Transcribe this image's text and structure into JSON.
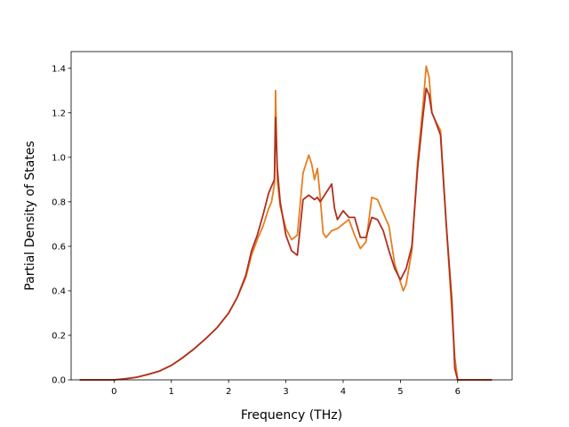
{
  "chart_data": {
    "type": "line",
    "xlabel": "Frequency (THz)",
    "ylabel": "Partial Density of States",
    "xlim": [
      -0.75,
      6.95
    ],
    "ylim": [
      0.0,
      1.475
    ],
    "xticks": [
      0,
      1,
      2,
      3,
      4,
      5,
      6
    ],
    "yticks": [
      0.0,
      0.2,
      0.4,
      0.6,
      0.8,
      1.0,
      1.2,
      1.4
    ],
    "grid": false,
    "legend": "none",
    "series": [
      {
        "color": "#e67e22",
        "points": [
          [
            -0.6,
            0
          ],
          [
            0,
            0
          ],
          [
            0.2,
            0.005
          ],
          [
            0.4,
            0.012
          ],
          [
            0.6,
            0.025
          ],
          [
            0.8,
            0.04
          ],
          [
            1.0,
            0.065
          ],
          [
            1.2,
            0.1
          ],
          [
            1.4,
            0.14
          ],
          [
            1.6,
            0.185
          ],
          [
            1.8,
            0.235
          ],
          [
            2.0,
            0.3
          ],
          [
            2.15,
            0.37
          ],
          [
            2.3,
            0.46
          ],
          [
            2.4,
            0.56
          ],
          [
            2.5,
            0.63
          ],
          [
            2.6,
            0.69
          ],
          [
            2.7,
            0.77
          ],
          [
            2.75,
            0.8
          ],
          [
            2.8,
            0.88
          ],
          [
            2.82,
            1.3
          ],
          [
            2.85,
            0.9
          ],
          [
            2.9,
            0.78
          ],
          [
            3.0,
            0.68
          ],
          [
            3.1,
            0.63
          ],
          [
            3.2,
            0.65
          ],
          [
            3.3,
            0.93
          ],
          [
            3.4,
            1.01
          ],
          [
            3.45,
            0.97
          ],
          [
            3.5,
            0.9
          ],
          [
            3.55,
            0.95
          ],
          [
            3.6,
            0.82
          ],
          [
            3.65,
            0.66
          ],
          [
            3.7,
            0.64
          ],
          [
            3.8,
            0.67
          ],
          [
            3.9,
            0.68
          ],
          [
            4.0,
            0.7
          ],
          [
            4.1,
            0.72
          ],
          [
            4.2,
            0.65
          ],
          [
            4.3,
            0.59
          ],
          [
            4.4,
            0.62
          ],
          [
            4.5,
            0.82
          ],
          [
            4.6,
            0.81
          ],
          [
            4.7,
            0.75
          ],
          [
            4.8,
            0.69
          ],
          [
            4.9,
            0.52
          ],
          [
            5.0,
            0.44
          ],
          [
            5.05,
            0.4
          ],
          [
            5.1,
            0.43
          ],
          [
            5.2,
            0.58
          ],
          [
            5.3,
            0.98
          ],
          [
            5.4,
            1.25
          ],
          [
            5.45,
            1.41
          ],
          [
            5.5,
            1.36
          ],
          [
            5.55,
            1.2
          ],
          [
            5.6,
            1.17
          ],
          [
            5.7,
            1.12
          ],
          [
            5.8,
            0.7
          ],
          [
            5.9,
            0.3
          ],
          [
            5.95,
            0.1
          ],
          [
            6.0,
            0
          ],
          [
            6.6,
            0
          ]
        ]
      },
      {
        "color": "#b03020",
        "points": [
          [
            -0.6,
            0
          ],
          [
            0,
            0
          ],
          [
            0.2,
            0.005
          ],
          [
            0.4,
            0.012
          ],
          [
            0.6,
            0.025
          ],
          [
            0.8,
            0.04
          ],
          [
            1.0,
            0.065
          ],
          [
            1.2,
            0.1
          ],
          [
            1.4,
            0.14
          ],
          [
            1.6,
            0.185
          ],
          [
            1.8,
            0.235
          ],
          [
            2.0,
            0.3
          ],
          [
            2.15,
            0.37
          ],
          [
            2.3,
            0.47
          ],
          [
            2.4,
            0.58
          ],
          [
            2.5,
            0.65
          ],
          [
            2.6,
            0.74
          ],
          [
            2.7,
            0.84
          ],
          [
            2.75,
            0.87
          ],
          [
            2.8,
            0.9
          ],
          [
            2.82,
            1.18
          ],
          [
            2.85,
            0.95
          ],
          [
            2.9,
            0.8
          ],
          [
            3.0,
            0.65
          ],
          [
            3.1,
            0.58
          ],
          [
            3.2,
            0.56
          ],
          [
            3.3,
            0.81
          ],
          [
            3.4,
            0.83
          ],
          [
            3.5,
            0.81
          ],
          [
            3.55,
            0.82
          ],
          [
            3.6,
            0.8
          ],
          [
            3.7,
            0.84
          ],
          [
            3.8,
            0.88
          ],
          [
            3.85,
            0.77
          ],
          [
            3.9,
            0.72
          ],
          [
            4.0,
            0.76
          ],
          [
            4.1,
            0.73
          ],
          [
            4.2,
            0.73
          ],
          [
            4.3,
            0.64
          ],
          [
            4.4,
            0.64
          ],
          [
            4.5,
            0.73
          ],
          [
            4.6,
            0.72
          ],
          [
            4.7,
            0.67
          ],
          [
            4.8,
            0.58
          ],
          [
            4.9,
            0.5
          ],
          [
            5.0,
            0.45
          ],
          [
            5.1,
            0.5
          ],
          [
            5.2,
            0.6
          ],
          [
            5.3,
            0.95
          ],
          [
            5.4,
            1.2
          ],
          [
            5.45,
            1.31
          ],
          [
            5.5,
            1.28
          ],
          [
            5.55,
            1.2
          ],
          [
            5.6,
            1.17
          ],
          [
            5.7,
            1.1
          ],
          [
            5.8,
            0.7
          ],
          [
            5.9,
            0.35
          ],
          [
            5.95,
            0.05
          ],
          [
            6.0,
            0
          ],
          [
            6.6,
            0
          ]
        ]
      }
    ]
  }
}
